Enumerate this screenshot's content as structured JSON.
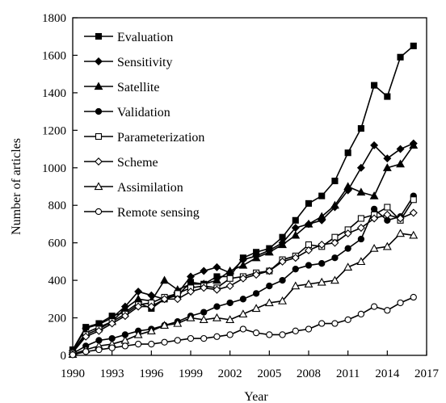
{
  "chart_data": {
    "type": "line",
    "title": "",
    "xlabel": "Year",
    "ylabel": "Number of articles",
    "xlim": [
      1990,
      2017
    ],
    "ylim": [
      0,
      1800
    ],
    "xticks": [
      1990,
      1993,
      1996,
      1999,
      2002,
      2005,
      2008,
      2011,
      2014,
      2017
    ],
    "yticks": [
      0,
      200,
      400,
      600,
      800,
      1000,
      1200,
      1400,
      1600,
      1800
    ],
    "grid": false,
    "legend_position": "top-left",
    "x": [
      1990,
      1991,
      1992,
      1993,
      1994,
      1995,
      1996,
      1997,
      1998,
      1999,
      2000,
      2001,
      2002,
      2003,
      2004,
      2005,
      2006,
      2007,
      2008,
      2009,
      2010,
      2011,
      2012,
      2013,
      2014,
      2015,
      2016
    ],
    "series": [
      {
        "name": "Evaluation",
        "marker": "square-filled",
        "values": [
          30,
          150,
          170,
          210,
          230,
          280,
          250,
          300,
          320,
          390,
          380,
          420,
          420,
          520,
          550,
          570,
          630,
          720,
          810,
          850,
          930,
          1080,
          1210,
          1440,
          1380,
          1590,
          1650
        ]
      },
      {
        "name": "Sensitivity",
        "marker": "diamond-filled",
        "values": [
          25,
          145,
          165,
          200,
          260,
          340,
          320,
          300,
          330,
          420,
          450,
          470,
          440,
          510,
          530,
          560,
          600,
          680,
          700,
          720,
          790,
          880,
          1000,
          1120,
          1050,
          1100,
          1130
        ]
      },
      {
        "name": "Satellite",
        "marker": "triangle-filled",
        "values": [
          20,
          120,
          150,
          180,
          250,
          300,
          290,
          400,
          350,
          380,
          380,
          400,
          450,
          480,
          520,
          550,
          590,
          640,
          700,
          740,
          800,
          900,
          870,
          850,
          1000,
          1020,
          1120
        ]
      },
      {
        "name": "Validation",
        "marker": "circle-filled",
        "values": [
          10,
          50,
          80,
          90,
          110,
          130,
          140,
          160,
          180,
          210,
          230,
          260,
          280,
          300,
          330,
          370,
          400,
          460,
          480,
          490,
          520,
          570,
          620,
          780,
          720,
          740,
          850
        ]
      },
      {
        "name": "Parameterization",
        "marker": "square-open",
        "values": [
          15,
          110,
          140,
          180,
          220,
          270,
          280,
          310,
          330,
          360,
          370,
          360,
          410,
          420,
          440,
          450,
          510,
          530,
          590,
          580,
          630,
          670,
          730,
          750,
          790,
          720,
          830
        ]
      },
      {
        "name": "Scheme",
        "marker": "diamond-open",
        "values": [
          15,
          100,
          130,
          170,
          210,
          260,
          260,
          300,
          300,
          340,
          360,
          350,
          370,
          410,
          430,
          450,
          500,
          520,
          560,
          590,
          600,
          650,
          680,
          730,
          750,
          730,
          760
        ]
      },
      {
        "name": "Assimilation",
        "marker": "triangle-open",
        "values": [
          5,
          30,
          50,
          60,
          80,
          110,
          130,
          160,
          170,
          200,
          190,
          200,
          190,
          220,
          250,
          280,
          290,
          370,
          380,
          390,
          400,
          470,
          500,
          570,
          580,
          650,
          640
        ]
      },
      {
        "name": "Remote sensing",
        "marker": "circle-open",
        "values": [
          3,
          20,
          30,
          40,
          50,
          60,
          60,
          70,
          80,
          90,
          90,
          100,
          110,
          140,
          120,
          110,
          110,
          130,
          140,
          170,
          170,
          190,
          220,
          260,
          240,
          280,
          310
        ]
      }
    ]
  }
}
